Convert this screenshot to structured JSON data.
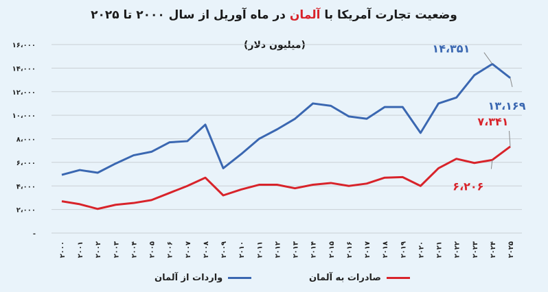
{
  "chart_data": {
    "type": "line",
    "title_parts": [
      "وضعیت تجارت آمریکا با ",
      "آلمان",
      " در ماه آوریل از سال ۲۰۰۰ تا ۲۰۲۵"
    ],
    "subtitle": "(میلیون دلار)",
    "ylim": [
      0,
      16000
    ],
    "yticks": [
      0,
      2000,
      4000,
      6000,
      8000,
      10000,
      12000,
      14000,
      16000
    ],
    "ytick_labels": [
      "-",
      "۲،۰۰۰",
      "۴،۰۰۰",
      "۶،۰۰۰",
      "۸،۰۰۰",
      "۱۰،۰۰۰",
      "۱۲،۰۰۰",
      "۱۴،۰۰۰",
      "۱۶،۰۰۰"
    ],
    "grid": true,
    "legend_placement": "bottom",
    "x": [
      "۲۰۰۰",
      "۲۰۰۱",
      "۲۰۰۲",
      "۲۰۰۳",
      "۲۰۰۴",
      "۲۰۰۵",
      "۲۰۰۶",
      "۲۰۰۷",
      "۲۰۰۸",
      "۲۰۰۹",
      "۲۰۱۰",
      "۲۰۱۱",
      "۲۰۱۲",
      "۲۰۱۳",
      "۲۰۱۴",
      "۲۰۱۵",
      "۲۰۱۶",
      "۲۰۱۷",
      "۲۰۱۸",
      "۲۰۱۹",
      "۲۰۲۰",
      "۲۰۲۱",
      "۲۰۲۲",
      "۲۰۲۳",
      "۲۰۲۴",
      "۲۰۲۵"
    ],
    "series": [
      {
        "name": "واردات از آلمان",
        "color": "#3a67b1",
        "values": [
          4940,
          5350,
          5120,
          5900,
          6600,
          6900,
          7700,
          7800,
          9200,
          5500,
          6700,
          8000,
          8800,
          9700,
          11000,
          10800,
          9900,
          9700,
          10700,
          10700,
          8500,
          11000,
          11500,
          13400,
          14351,
          13169
        ]
      },
      {
        "name": "صادرات به آلمان",
        "color": "#d8232a",
        "values": [
          2700,
          2450,
          2050,
          2400,
          2550,
          2800,
          3400,
          4000,
          4700,
          3200,
          3700,
          4100,
          4100,
          3800,
          4100,
          4250,
          4000,
          4200,
          4700,
          4750,
          4000,
          5500,
          6300,
          5950,
          6206,
          7341
        ]
      }
    ],
    "annotations": [
      {
        "series": 0,
        "index": 24,
        "label": "۱۴،۳۵۱"
      },
      {
        "series": 0,
        "index": 25,
        "label": "۱۳،۱۶۹"
      },
      {
        "series": 1,
        "index": 25,
        "label": "۷،۳۴۱"
      },
      {
        "series": 1,
        "index": 24,
        "label": "۶،۲۰۶"
      }
    ]
  }
}
